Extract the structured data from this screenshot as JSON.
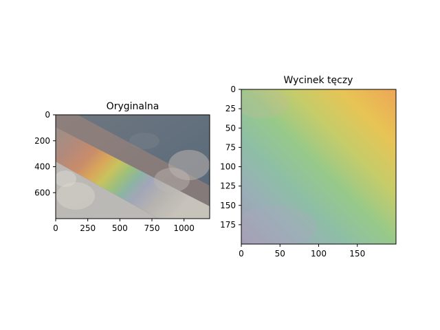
{
  "chart_data": [
    {
      "type": "heatmap",
      "title": "Oryginalna",
      "description": "image panel: photo of rainbow diagonal across cloudy sky",
      "xlim": [
        0,
        1200
      ],
      "ylim": [
        800,
        0
      ],
      "x_ticks": [
        0,
        250,
        500,
        750,
        1000
      ],
      "y_ticks": [
        0,
        200,
        400,
        600
      ],
      "grid": false
    },
    {
      "type": "heatmap",
      "title": "Wycinek tęczy",
      "description": "image panel: zoomed crop of rainbow band",
      "xlim": [
        0,
        200
      ],
      "ylim": [
        200,
        0
      ],
      "x_ticks": [
        0,
        50,
        100,
        150
      ],
      "y_ticks": [
        0,
        25,
        50,
        75,
        100,
        125,
        150,
        175
      ],
      "grid": false
    }
  ]
}
